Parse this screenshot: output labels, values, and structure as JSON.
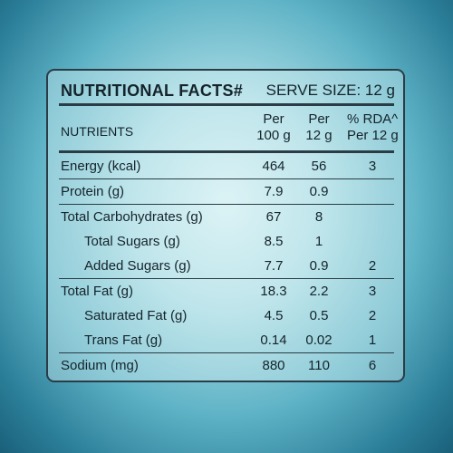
{
  "label": {
    "title": "NUTRITIONAL FACTS#",
    "serve_size": "SERVE SIZE: 12 g",
    "headers": {
      "nutrients": "NUTRIENTS",
      "col1_line1": "Per",
      "col1_line2": "100 g",
      "col2_line1": "Per",
      "col2_line2": "12 g",
      "col3_line1": "% RDA^",
      "col3_line2": "Per 12 g"
    },
    "rows": [
      {
        "name": "Energy (kcal)",
        "per100": "464",
        "per12": "56",
        "rda": "3"
      },
      {
        "name": "Protein (g)",
        "per100": "7.9",
        "per12": "0.9",
        "rda": ""
      },
      {
        "name": "Total Carbohydrates (g)",
        "per100": "67",
        "per12": "8",
        "rda": ""
      },
      {
        "name": "Total Sugars (g)",
        "per100": "8.5",
        "per12": "1",
        "rda": ""
      },
      {
        "name": "Added Sugars (g)",
        "per100": "7.7",
        "per12": "0.9",
        "rda": "2"
      },
      {
        "name": "Total Fat (g)",
        "per100": "18.3",
        "per12": "2.2",
        "rda": "3"
      },
      {
        "name": "Saturated Fat (g)",
        "per100": "4.5",
        "per12": "0.5",
        "rda": "2"
      },
      {
        "name": "Trans Fat (g)",
        "per100": "0.14",
        "per12": "0.02",
        "rda": "1"
      },
      {
        "name": "Sodium (mg)",
        "per100": "880",
        "per12": "110",
        "rda": "6"
      }
    ]
  }
}
